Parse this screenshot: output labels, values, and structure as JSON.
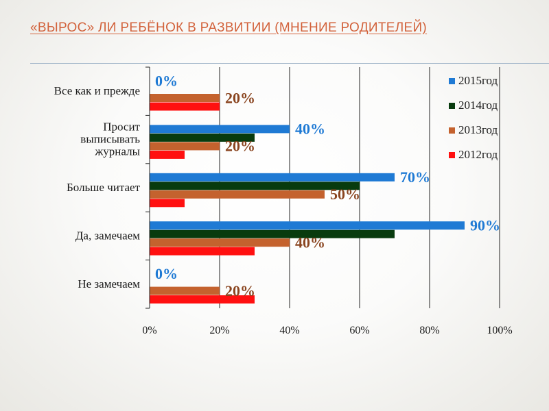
{
  "title": "«ВЫРОС» ЛИ РЕБЁНОК В РАЗВИТИИ (МНЕНИЕ РОДИТЕЛЕЙ)",
  "chart_data": {
    "type": "bar",
    "orientation": "horizontal",
    "categories": [
      [
        "Все как и прежде"
      ],
      [
        "Просит",
        "выписывать",
        "журналы"
      ],
      [
        "Больше читает"
      ],
      [
        "Да, замечаем"
      ],
      [
        "Не замечаем"
      ]
    ],
    "series": [
      {
        "name": "2015год",
        "color": "#1f7ad4",
        "values": [
          0,
          40,
          70,
          90,
          0
        ]
      },
      {
        "name": "2014год",
        "color": "#083b0e",
        "values": [
          0,
          30,
          60,
          70,
          0
        ]
      },
      {
        "name": "2013год",
        "color": "#c4622e",
        "values": [
          20,
          20,
          50,
          40,
          20
        ]
      },
      {
        "name": "2012год",
        "color": "#ff1010",
        "values": [
          20,
          10,
          10,
          30,
          30
        ]
      }
    ],
    "data_labels": [
      {
        "category": 0,
        "series": "2015год",
        "text": "0%",
        "color": "#1f7ad4"
      },
      {
        "category": 0,
        "series": "2013год",
        "text": "20%",
        "color": "#8a4520"
      },
      {
        "category": 1,
        "series": "2015год",
        "text": "40%",
        "color": "#1f7ad4"
      },
      {
        "category": 1,
        "series": "2013год",
        "text": "20%",
        "color": "#8a4520"
      },
      {
        "category": 2,
        "series": "2015год",
        "text": "70%",
        "color": "#1f7ad4"
      },
      {
        "category": 2,
        "series": "2013год",
        "text": "50%",
        "color": "#8a4520"
      },
      {
        "category": 3,
        "series": "2015год",
        "text": "90%",
        "color": "#1f7ad4"
      },
      {
        "category": 3,
        "series": "2013год",
        "text": "40%",
        "color": "#8a4520"
      },
      {
        "category": 4,
        "series": "2015год",
        "text": "0%",
        "color": "#1f7ad4"
      },
      {
        "category": 4,
        "series": "2013год",
        "text": "20%",
        "color": "#8a4520"
      }
    ],
    "x_ticks": [
      "0%",
      "20%",
      "40%",
      "60%",
      "80%",
      "100%"
    ],
    "xlim": [
      0,
      100
    ],
    "grid": true,
    "legend_position": "top-right",
    "xlabel": "",
    "ylabel": ""
  }
}
